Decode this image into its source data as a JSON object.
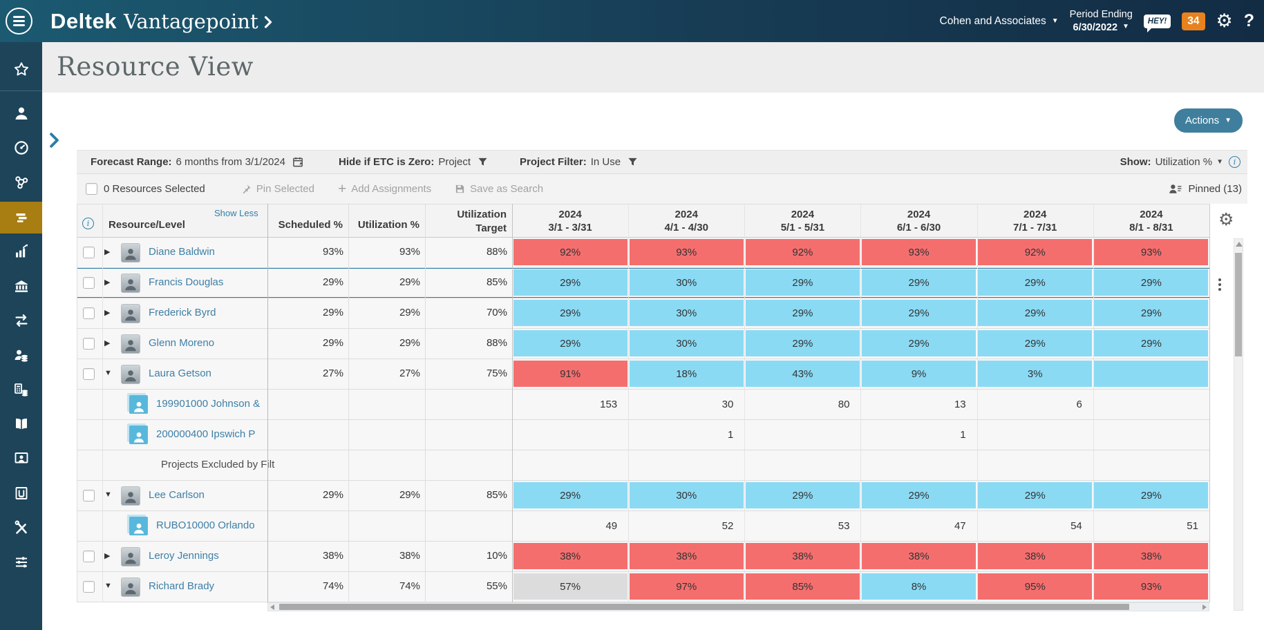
{
  "brand": {
    "name": "Deltek",
    "product": "Vantagepoint"
  },
  "topbar": {
    "company": "Cohen and Associates",
    "period_label": "Period Ending",
    "period_value": "6/30/2022",
    "hey_badge": "HEY!",
    "notification_count": "34",
    "help": "?"
  },
  "sidebar": {
    "items": [
      {
        "name": "favorites"
      },
      {
        "name": "contacts"
      },
      {
        "name": "dashboard"
      },
      {
        "name": "collaboration"
      },
      {
        "name": "resource-planning",
        "active": true
      },
      {
        "name": "analytics"
      },
      {
        "name": "accounting"
      },
      {
        "name": "transactions"
      },
      {
        "name": "cash-management"
      },
      {
        "name": "billing"
      },
      {
        "name": "library"
      },
      {
        "name": "human-resources"
      },
      {
        "name": "apps"
      },
      {
        "name": "utilities"
      },
      {
        "name": "settings"
      }
    ]
  },
  "page": {
    "title": "Resource View",
    "actions_button": "Actions"
  },
  "filters": {
    "forecast_label": "Forecast Range:",
    "forecast_value": "6 months from 3/1/2024",
    "etc_label": "Hide if ETC is Zero:",
    "etc_value": "Project",
    "project_filter_label": "Project Filter:",
    "project_filter_value": "In Use",
    "show_label": "Show:",
    "show_value": "Utilization %"
  },
  "toolbar": {
    "selected_text": "0 Resources Selected",
    "pin_selected": "Pin Selected",
    "add_assignments": "Add Assignments",
    "save_as_search": "Save as Search",
    "pinned": "Pinned (13)"
  },
  "table": {
    "show_less": "Show Less",
    "columns": {
      "resource": "Resource/Level",
      "scheduled": "Scheduled %",
      "utilization": "Utilization %",
      "target_line1": "Utilization",
      "target_line2": "Target"
    },
    "months": [
      {
        "year": "2024",
        "range": "3/1 - 3/31"
      },
      {
        "year": "2024",
        "range": "4/1 - 4/30"
      },
      {
        "year": "2024",
        "range": "5/1 - 5/31"
      },
      {
        "year": "2024",
        "range": "6/1 - 6/30"
      },
      {
        "year": "2024",
        "range": "7/1 - 7/31"
      },
      {
        "year": "2024",
        "range": "8/1 - 8/31"
      }
    ],
    "rows": [
      {
        "kind": "resource",
        "name": "Diane Baldwin",
        "state": "collapsed",
        "scheduled": "93%",
        "utilization": "93%",
        "target": "88%",
        "cells": [
          {
            "v": "92%",
            "c": "red"
          },
          {
            "v": "93%",
            "c": "red"
          },
          {
            "v": "92%",
            "c": "red"
          },
          {
            "v": "93%",
            "c": "red"
          },
          {
            "v": "92%",
            "c": "red"
          },
          {
            "v": "93%",
            "c": "red"
          }
        ]
      },
      {
        "kind": "resource",
        "name": "Francis Douglas",
        "state": "collapsed",
        "selected": true,
        "scheduled": "29%",
        "utilization": "29%",
        "target": "85%",
        "cells": [
          {
            "v": "29%",
            "c": "blue"
          },
          {
            "v": "30%",
            "c": "blue"
          },
          {
            "v": "29%",
            "c": "blue"
          },
          {
            "v": "29%",
            "c": "blue"
          },
          {
            "v": "29%",
            "c": "blue"
          },
          {
            "v": "29%",
            "c": "blue"
          }
        ]
      },
      {
        "kind": "resource",
        "name": "Frederick Byrd",
        "state": "collapsed",
        "scheduled": "29%",
        "utilization": "29%",
        "target": "70%",
        "cells": [
          {
            "v": "29%",
            "c": "blue"
          },
          {
            "v": "30%",
            "c": "blue"
          },
          {
            "v": "29%",
            "c": "blue"
          },
          {
            "v": "29%",
            "c": "blue"
          },
          {
            "v": "29%",
            "c": "blue"
          },
          {
            "v": "29%",
            "c": "blue"
          }
        ]
      },
      {
        "kind": "resource",
        "name": "Glenn Moreno",
        "state": "collapsed",
        "scheduled": "29%",
        "utilization": "29%",
        "target": "88%",
        "cells": [
          {
            "v": "29%",
            "c": "blue"
          },
          {
            "v": "30%",
            "c": "blue"
          },
          {
            "v": "29%",
            "c": "blue"
          },
          {
            "v": "29%",
            "c": "blue"
          },
          {
            "v": "29%",
            "c": "blue"
          },
          {
            "v": "29%",
            "c": "blue"
          }
        ]
      },
      {
        "kind": "resource",
        "name": "Laura Getson",
        "state": "expanded",
        "scheduled": "27%",
        "utilization": "27%",
        "target": "75%",
        "cells": [
          {
            "v": "91%",
            "c": "red"
          },
          {
            "v": "18%",
            "c": "blue"
          },
          {
            "v": "43%",
            "c": "blue"
          },
          {
            "v": "9%",
            "c": "blue"
          },
          {
            "v": "3%",
            "c": "blue"
          },
          {
            "v": "",
            "c": "blue"
          }
        ]
      },
      {
        "kind": "project",
        "name": "199901000 Johnson &",
        "cells": [
          {
            "v": "153"
          },
          {
            "v": "30"
          },
          {
            "v": "80"
          },
          {
            "v": "13"
          },
          {
            "v": "6"
          },
          {
            "v": ""
          }
        ]
      },
      {
        "kind": "project",
        "name": "200000400 Ipswich P",
        "cells": [
          {
            "v": ""
          },
          {
            "v": "1"
          },
          {
            "v": ""
          },
          {
            "v": "1"
          },
          {
            "v": ""
          },
          {
            "v": ""
          }
        ]
      },
      {
        "kind": "note",
        "name": "Projects Excluded by Filter",
        "cells": [
          {
            "v": ""
          },
          {
            "v": ""
          },
          {
            "v": ""
          },
          {
            "v": ""
          },
          {
            "v": ""
          },
          {
            "v": ""
          }
        ]
      },
      {
        "kind": "resource",
        "name": "Lee Carlson",
        "state": "expanded",
        "scheduled": "29%",
        "utilization": "29%",
        "target": "85%",
        "cells": [
          {
            "v": "29%",
            "c": "blue"
          },
          {
            "v": "30%",
            "c": "blue"
          },
          {
            "v": "29%",
            "c": "blue"
          },
          {
            "v": "29%",
            "c": "blue"
          },
          {
            "v": "29%",
            "c": "blue"
          },
          {
            "v": "29%",
            "c": "blue"
          }
        ]
      },
      {
        "kind": "project",
        "name": "RUBO10000 Orlando",
        "cells": [
          {
            "v": "49"
          },
          {
            "v": "52"
          },
          {
            "v": "53"
          },
          {
            "v": "47"
          },
          {
            "v": "54"
          },
          {
            "v": "51"
          }
        ]
      },
      {
        "kind": "resource",
        "name": "Leroy Jennings",
        "state": "collapsed",
        "scheduled": "38%",
        "utilization": "38%",
        "target": "10%",
        "cells": [
          {
            "v": "38%",
            "c": "red"
          },
          {
            "v": "38%",
            "c": "red"
          },
          {
            "v": "38%",
            "c": "red"
          },
          {
            "v": "38%",
            "c": "red"
          },
          {
            "v": "38%",
            "c": "red"
          },
          {
            "v": "38%",
            "c": "red"
          }
        ]
      },
      {
        "kind": "resource",
        "name": "Richard Brady",
        "state": "expanded",
        "scheduled": "74%",
        "utilization": "74%",
        "target": "55%",
        "cells": [
          {
            "v": "57%",
            "c": "gray"
          },
          {
            "v": "97%",
            "c": "red"
          },
          {
            "v": "85%",
            "c": "red"
          },
          {
            "v": "8%",
            "c": "blue"
          },
          {
            "v": "95%",
            "c": "red"
          },
          {
            "v": "93%",
            "c": "red"
          }
        ]
      }
    ]
  },
  "colors": {
    "red": "#f56e6e",
    "blue": "#8adaf4",
    "gray": "#dcdcdc",
    "accent": "#a87d12",
    "selected": "#2f7ca4"
  }
}
